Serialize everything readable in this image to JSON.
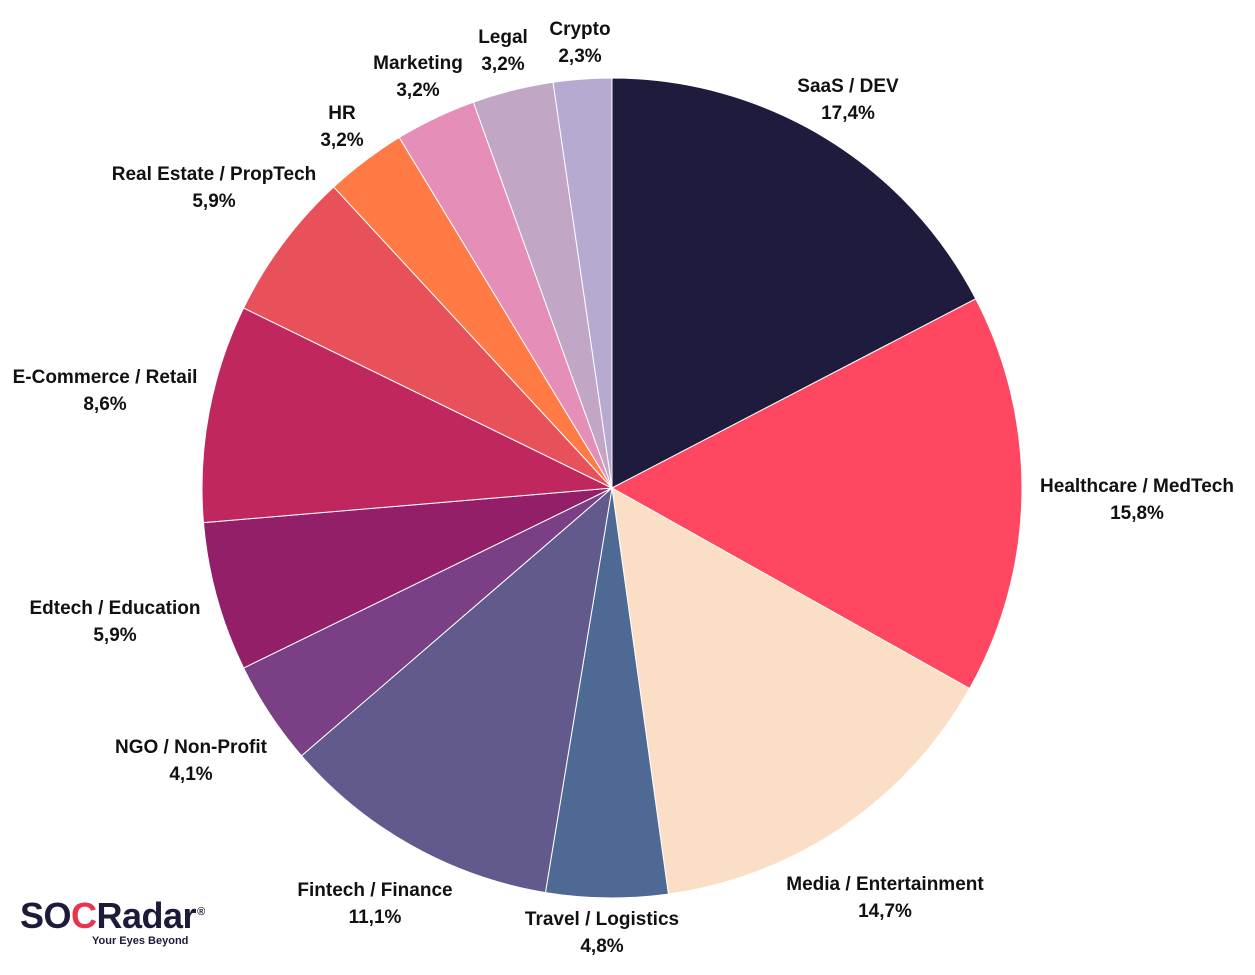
{
  "chart_data": {
    "type": "pie",
    "slices": [
      {
        "label": "SaaS / DEV",
        "value_label": "17,4%",
        "value": 17.4,
        "color": "#1e1b3d"
      },
      {
        "label": "Healthcare / MedTech",
        "value_label": "15,8%",
        "value": 15.8,
        "color": "#ff4762"
      },
      {
        "label": "Media / Entertainment",
        "value_label": "14,7%",
        "value": 14.7,
        "color": "#fadfc6"
      },
      {
        "label": "Travel / Logistics",
        "value_label": "4,8%",
        "value": 4.8,
        "color": "#4e6a94"
      },
      {
        "label": "Fintech / Finance",
        "value_label": "11,1%",
        "value": 11.1,
        "color": "#625a8d"
      },
      {
        "label": "NGO / Non-Profit",
        "value_label": "4,1%",
        "value": 4.1,
        "color": "#7b3f85"
      },
      {
        "label": "Edtech / Education",
        "value_label": "5,9%",
        "value": 5.9,
        "color": "#931f69"
      },
      {
        "label": "E-Commerce / Retail",
        "value_label": "8,6%",
        "value": 8.6,
        "color": "#c0275f"
      },
      {
        "label": "Real Estate / PropTech",
        "value_label": "5,9%",
        "value": 5.9,
        "color": "#e8505a"
      },
      {
        "label": "HR",
        "value_label": "3,2%",
        "value": 3.2,
        "color": "#ff7a45"
      },
      {
        "label": "Marketing",
        "value_label": "3,2%",
        "value": 3.2,
        "color": "#e58fb8"
      },
      {
        "label": "Legal",
        "value_label": "3,2%",
        "value": 3.2,
        "color": "#c2a6c6"
      },
      {
        "label": "Crypto",
        "value_label": "2,3%",
        "value": 2.3,
        "color": "#b7aad1"
      }
    ]
  },
  "logo": {
    "name_prefix": "SO",
    "name_accent": "C",
    "name_suffix": "Radar",
    "registered": "®",
    "tagline": "Your Eyes Beyond"
  }
}
